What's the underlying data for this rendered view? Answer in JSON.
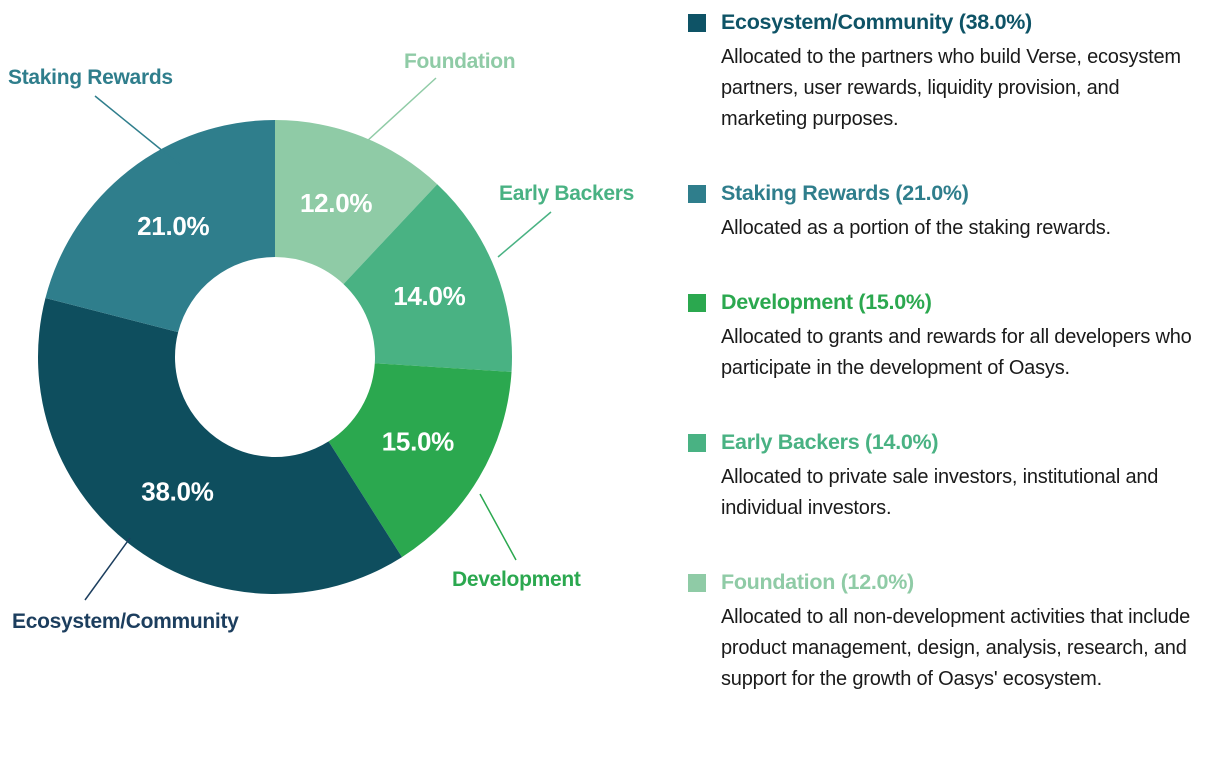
{
  "page": {
    "background": "#ffffff"
  },
  "chart_data": {
    "type": "pie",
    "subtype": "donut",
    "title": "",
    "start_angle_deg": -90,
    "direction": "clockwise",
    "slices": [
      {
        "name": "Foundation",
        "value": 12.0,
        "value_label": "12.0%",
        "color": "#8FCBA6"
      },
      {
        "name": "Early Backers",
        "value": 14.0,
        "value_label": "14.0%",
        "color": "#49B283"
      },
      {
        "name": "Development",
        "value": 15.0,
        "value_label": "15.0%",
        "color": "#2BA84F"
      },
      {
        "name": "Ecosystem/Community",
        "value": 38.0,
        "value_label": "38.0%",
        "color": "#0E4E5E",
        "label_color": "#1C3E5E"
      },
      {
        "name": "Staking Rewards",
        "value": 21.0,
        "value_label": "21.0%",
        "color": "#2F7E8C"
      }
    ]
  },
  "legend": {
    "items": [
      {
        "title": "Ecosystem/Community (38.0%)",
        "color": "#0E5366",
        "description": "Allocated to the partners who build Verse, ecosystem partners, user rewards, liquidity provision, and marketing purposes."
      },
      {
        "title": "Staking Rewards (21.0%)",
        "color": "#2F7E8C",
        "description": "Allocated as a portion of the staking rewards."
      },
      {
        "title": "Development (15.0%)",
        "color": "#2BA84F",
        "description": "Allocated to grants and rewards for all developers who participate in the development of Oasys."
      },
      {
        "title": "Early Backers (14.0%)",
        "color": "#49B283",
        "description": "Allocated to private sale investors, institutional and individual investors."
      },
      {
        "title": "Foundation (12.0%)",
        "color": "#8FCBA6",
        "description": "Allocated to all non-development activities that include product management, design, analysis, research, and support for the growth of Oasys' ecosystem."
      }
    ]
  }
}
